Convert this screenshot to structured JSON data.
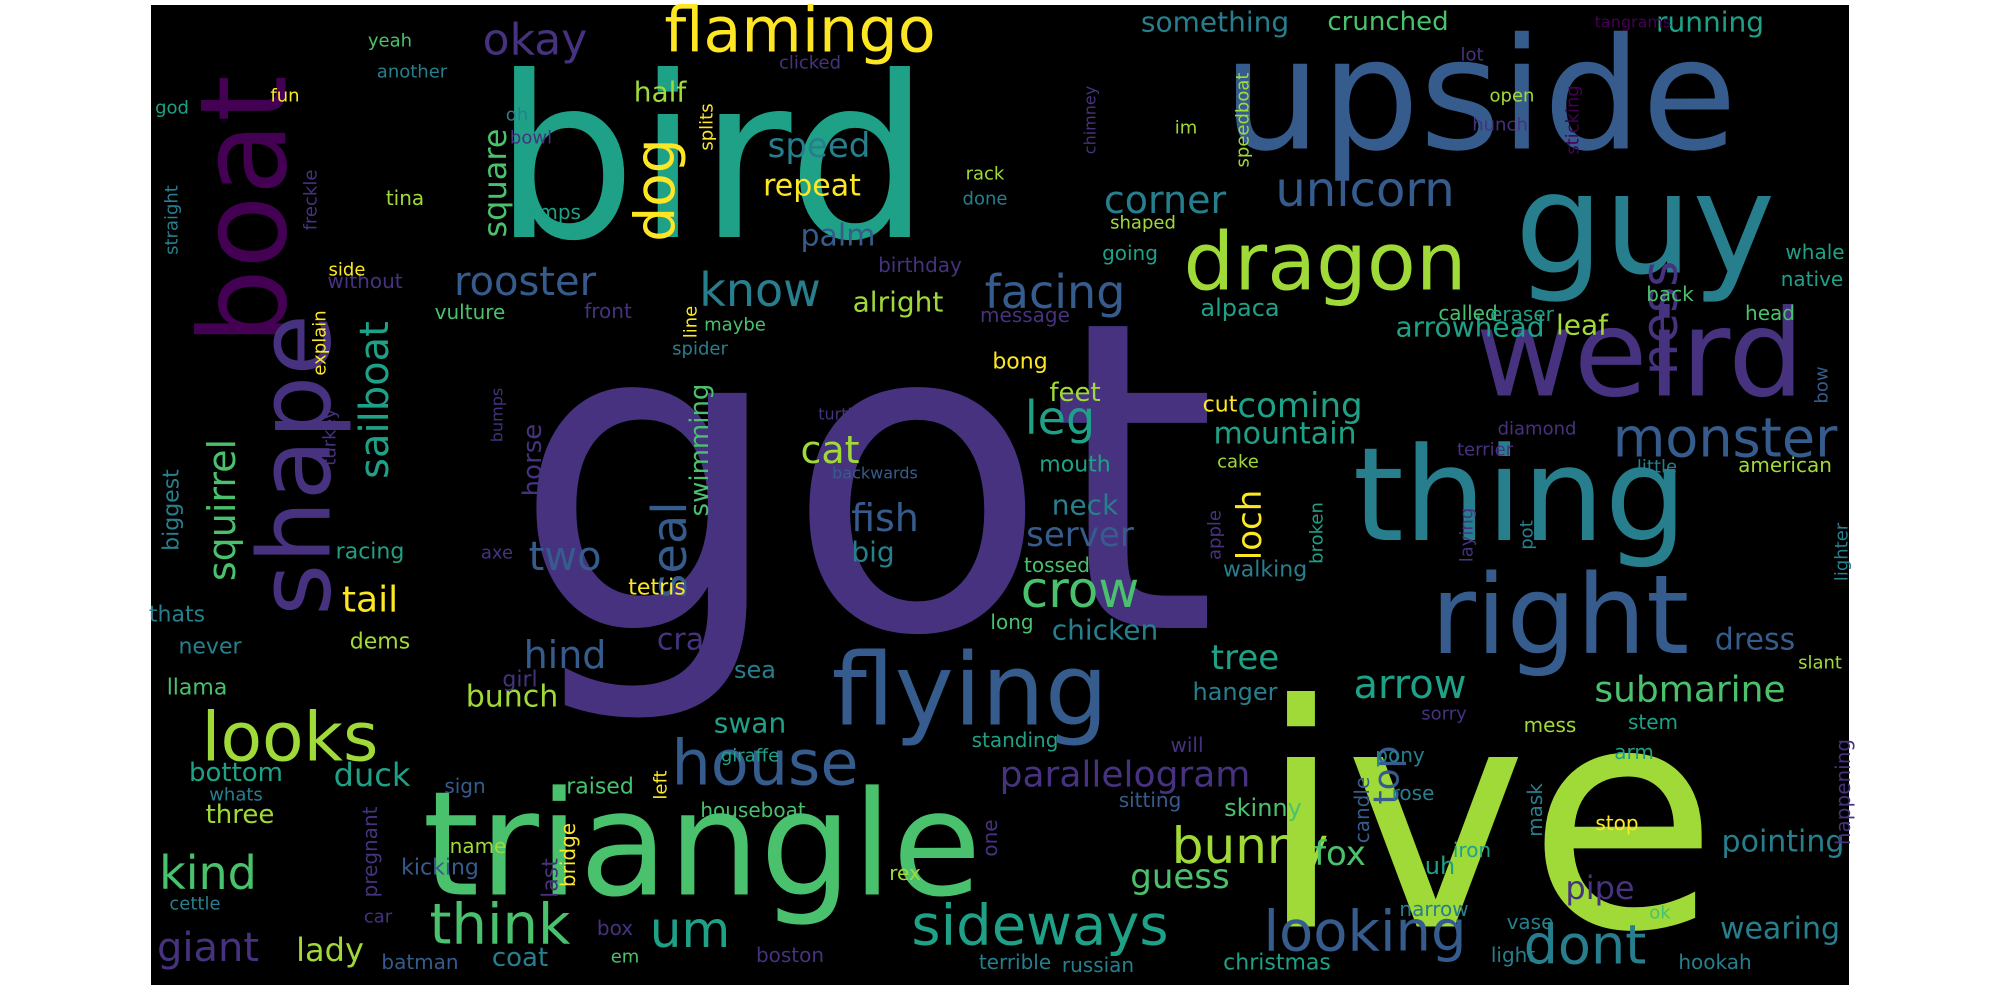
{
  "background_color": "#000000",
  "palette": [
    "#440154",
    "#46327e",
    "#365c8d",
    "#277f8e",
    "#1fa187",
    "#4ac16d",
    "#a0da39",
    "#fde725"
  ],
  "words": [
    {
      "text": "got",
      "color": "#46327e"
    },
    {
      "text": "ive",
      "color": "#a0da39"
    },
    {
      "text": "bird",
      "color": "#1fa187"
    },
    {
      "text": "upside",
      "color": "#365c8d"
    },
    {
      "text": "triangle",
      "color": "#4ac16d"
    },
    {
      "text": "thing",
      "color": "#277f8e"
    },
    {
      "text": "guy",
      "color": "#277f8e"
    },
    {
      "text": "weird",
      "color": "#46327e"
    },
    {
      "text": "right",
      "color": "#365c8d"
    },
    {
      "text": "flying",
      "color": "#365c8d"
    },
    {
      "text": "boat",
      "color": "#440154"
    },
    {
      "text": "shape",
      "color": "#46327e"
    },
    {
      "text": "dragon",
      "color": "#a0da39"
    },
    {
      "text": "flamingo",
      "color": "#fde725"
    },
    {
      "text": "looks",
      "color": "#a0da39"
    },
    {
      "text": "house",
      "color": "#365c8d"
    },
    {
      "text": "sideways",
      "color": "#1fa187"
    },
    {
      "text": "looking",
      "color": "#365c8d"
    },
    {
      "text": "think",
      "color": "#4ac16d"
    },
    {
      "text": "unicorn",
      "color": "#365c8d"
    },
    {
      "text": "monster",
      "color": "#365c8d"
    },
    {
      "text": "ness",
      "color": "#46327e"
    },
    {
      "text": "crow",
      "color": "#4ac16d"
    },
    {
      "text": "rooster",
      "color": "#365c8d"
    },
    {
      "text": "know",
      "color": "#277f8e"
    },
    {
      "text": "facing",
      "color": "#365c8d"
    },
    {
      "text": "dog",
      "color": "#fde725"
    },
    {
      "text": "um",
      "color": "#1fa187"
    },
    {
      "text": "dont",
      "color": "#277f8e"
    },
    {
      "text": "bunny",
      "color": "#a0da39"
    },
    {
      "text": "okay",
      "color": "#46327e"
    },
    {
      "text": "parallelogram",
      "color": "#46327e"
    },
    {
      "text": "arrow",
      "color": "#1fa187"
    },
    {
      "text": "submarine",
      "color": "#4ac16d"
    },
    {
      "text": "kind",
      "color": "#4ac16d"
    },
    {
      "text": "giant",
      "color": "#46327e"
    },
    {
      "text": "sailboat",
      "color": "#1fa187"
    },
    {
      "text": "squirrel",
      "color": "#4ac16d"
    },
    {
      "text": "seal",
      "color": "#365c8d"
    },
    {
      "text": "leg",
      "color": "#1fa187"
    },
    {
      "text": "corner",
      "color": "#277f8e"
    },
    {
      "text": "fish",
      "color": "#365c8d"
    },
    {
      "text": "cat",
      "color": "#a0da39"
    },
    {
      "text": "two",
      "color": "#365c8d"
    },
    {
      "text": "hind",
      "color": "#365c8d"
    },
    {
      "text": "tail",
      "color": "#fde725"
    },
    {
      "text": "loch",
      "color": "#fde725"
    },
    {
      "text": "tree",
      "color": "#1fa187"
    },
    {
      "text": "fox",
      "color": "#4ac16d"
    },
    {
      "text": "guess",
      "color": "#4ac16d"
    },
    {
      "text": "top",
      "color": "#365c8d"
    },
    {
      "text": "coming",
      "color": "#1fa187"
    },
    {
      "text": "mountain",
      "color": "#1fa187"
    },
    {
      "text": "server",
      "color": "#365c8d"
    },
    {
      "text": "lady",
      "color": "#a0da39"
    },
    {
      "text": "duck",
      "color": "#1fa187"
    },
    {
      "text": "pointing",
      "color": "#277f8e"
    },
    {
      "text": "wearing",
      "color": "#277f8e"
    },
    {
      "text": "pipe",
      "color": "#46327e"
    },
    {
      "text": "dress",
      "color": "#365c8d"
    },
    {
      "text": "half",
      "color": "#a0da39"
    },
    {
      "text": "speed",
      "color": "#277f8e"
    },
    {
      "text": "repeat",
      "color": "#fde725"
    },
    {
      "text": "palm",
      "color": "#365c8d"
    },
    {
      "text": "square",
      "color": "#4ac16d"
    },
    {
      "text": "alright",
      "color": "#a0da39"
    },
    {
      "text": "something",
      "color": "#277f8e"
    },
    {
      "text": "crunched",
      "color": "#4ac16d"
    },
    {
      "text": "running",
      "color": "#1fa187"
    },
    {
      "text": "arrowhead",
      "color": "#1fa187"
    },
    {
      "text": "leaf",
      "color": "#a0da39"
    },
    {
      "text": "alpaca",
      "color": "#1fa187"
    },
    {
      "text": "chicken",
      "color": "#277f8e"
    },
    {
      "text": "crab",
      "color": "#46327e"
    },
    {
      "text": "swan",
      "color": "#1fa187"
    },
    {
      "text": "bunch",
      "color": "#a0da39"
    },
    {
      "text": "swimming",
      "color": "#4ac16d"
    },
    {
      "text": "big",
      "color": "#277f8e"
    },
    {
      "text": "neck",
      "color": "#277f8e"
    },
    {
      "text": "feet",
      "color": "#a0da39"
    },
    {
      "text": "horse",
      "color": "#46327e"
    },
    {
      "text": "hanger",
      "color": "#277f8e"
    },
    {
      "text": "bottom",
      "color": "#1fa187"
    },
    {
      "text": "three",
      "color": "#a0da39"
    },
    {
      "text": "coat",
      "color": "#277f8e"
    },
    {
      "text": "uh",
      "color": "#1fa187"
    },
    {
      "text": "sea",
      "color": "#277f8e"
    },
    {
      "text": "biggest",
      "color": "#277f8e"
    },
    {
      "text": "last",
      "color": "#46327e"
    },
    {
      "text": "cut",
      "color": "#fde725"
    },
    {
      "text": "bong",
      "color": "#fde725"
    },
    {
      "text": "mouth",
      "color": "#1fa187"
    },
    {
      "text": "walking",
      "color": "#277f8e"
    },
    {
      "text": "explain",
      "color": "#fde725"
    },
    {
      "text": "turkey",
      "color": "#46327e"
    },
    {
      "text": "tetris",
      "color": "#fde725"
    },
    {
      "text": "racing",
      "color": "#1fa187"
    },
    {
      "text": "llama",
      "color": "#4ac16d"
    },
    {
      "text": "dems",
      "color": "#a0da39"
    },
    {
      "text": "thats",
      "color": "#277f8e"
    },
    {
      "text": "never",
      "color": "#277f8e"
    },
    {
      "text": "girl",
      "color": "#46327e"
    },
    {
      "text": "giraffe",
      "color": "#1fa187"
    },
    {
      "text": "skinny",
      "color": "#4ac16d"
    },
    {
      "text": "standing",
      "color": "#1fa187"
    },
    {
      "text": "christmas",
      "color": "#1fa187"
    },
    {
      "text": "hookah",
      "color": "#277f8e"
    },
    {
      "text": "light",
      "color": "#277f8e"
    },
    {
      "text": "terrible",
      "color": "#277f8e"
    },
    {
      "text": "russian",
      "color": "#277f8e"
    },
    {
      "text": "boston",
      "color": "#46327e"
    },
    {
      "text": "batman",
      "color": "#365c8d"
    },
    {
      "text": "em",
      "color": "#4ac16d"
    },
    {
      "text": "box",
      "color": "#46327e"
    },
    {
      "text": "car",
      "color": "#46327e"
    },
    {
      "text": "cettle",
      "color": "#277f8e"
    },
    {
      "text": "rex",
      "color": "#a0da39"
    },
    {
      "text": "kicking",
      "color": "#365c8d"
    },
    {
      "text": "name",
      "color": "#a0da39"
    },
    {
      "text": "sign",
      "color": "#365c8d"
    },
    {
      "text": "raised",
      "color": "#4ac16d"
    },
    {
      "text": "whats",
      "color": "#277f8e"
    },
    {
      "text": "houseboat",
      "color": "#4ac16d"
    },
    {
      "text": "sitting",
      "color": "#365c8d"
    },
    {
      "text": "vase",
      "color": "#277f8e"
    },
    {
      "text": "narrow",
      "color": "#277f8e"
    },
    {
      "text": "iron",
      "color": "#1fa187"
    },
    {
      "text": "ok",
      "color": "#4ac16d"
    },
    {
      "text": "mess",
      "color": "#a0da39"
    },
    {
      "text": "stem",
      "color": "#1fa187"
    },
    {
      "text": "pony",
      "color": "#277f8e"
    },
    {
      "text": "sorry",
      "color": "#46327e"
    },
    {
      "text": "stop",
      "color": "#fde725"
    },
    {
      "text": "rose",
      "color": "#277f8e"
    },
    {
      "text": "arm",
      "color": "#1fa187"
    },
    {
      "text": "candle",
      "color": "#365c8d"
    },
    {
      "text": "mask",
      "color": "#277f8e"
    },
    {
      "text": "happening",
      "color": "#46327e"
    },
    {
      "text": "will",
      "color": "#46327e"
    },
    {
      "text": "one",
      "color": "#46327e"
    },
    {
      "text": "pregnant",
      "color": "#46327e"
    },
    {
      "text": "bridge",
      "color": "#fde725"
    },
    {
      "text": "left",
      "color": "#fde725"
    },
    {
      "text": "tossed",
      "color": "#4ac16d"
    },
    {
      "text": "long",
      "color": "#4ac16d"
    },
    {
      "text": "axe",
      "color": "#46327e"
    },
    {
      "text": "apple",
      "color": "#46327e"
    },
    {
      "text": "broken",
      "color": "#1fa187"
    },
    {
      "text": "laying",
      "color": "#46327e"
    },
    {
      "text": "pot",
      "color": "#277f8e"
    },
    {
      "text": "lighter",
      "color": "#277f8e"
    },
    {
      "text": "slant",
      "color": "#a0da39"
    },
    {
      "text": "cake",
      "color": "#a0da39"
    },
    {
      "text": "terrier",
      "color": "#46327e"
    },
    {
      "text": "diamond",
      "color": "#46327e"
    },
    {
      "text": "little",
      "color": "#277f8e"
    },
    {
      "text": "american",
      "color": "#a0da39"
    },
    {
      "text": "bow",
      "color": "#365c8d"
    },
    {
      "text": "back",
      "color": "#4ac16d"
    },
    {
      "text": "head",
      "color": "#4ac16d"
    },
    {
      "text": "native",
      "color": "#1fa187"
    },
    {
      "text": "whale",
      "color": "#1fa187"
    },
    {
      "text": "called",
      "color": "#4ac16d"
    },
    {
      "text": "eraser",
      "color": "#1fa187"
    },
    {
      "text": "message",
      "color": "#46327e"
    },
    {
      "text": "going",
      "color": "#1fa187"
    },
    {
      "text": "shaped",
      "color": "#a0da39"
    },
    {
      "text": "birthday",
      "color": "#46327e"
    },
    {
      "text": "front",
      "color": "#46327e"
    },
    {
      "text": "vulture",
      "color": "#4ac16d"
    },
    {
      "text": "without",
      "color": "#46327e"
    },
    {
      "text": "side",
      "color": "#fde725"
    },
    {
      "text": "humps",
      "color": "#1fa187"
    },
    {
      "text": "tina",
      "color": "#a0da39"
    },
    {
      "text": "bowl",
      "color": "#46327e"
    },
    {
      "text": "freckle",
      "color": "#46327e"
    },
    {
      "text": "straight",
      "color": "#277f8e"
    },
    {
      "text": "god",
      "color": "#1fa187"
    },
    {
      "text": "fun",
      "color": "#fde725"
    },
    {
      "text": "oh",
      "color": "#277f8e"
    },
    {
      "text": "yeah",
      "color": "#4ac16d"
    },
    {
      "text": "another",
      "color": "#277f8e"
    },
    {
      "text": "clicked",
      "color": "#46327e"
    },
    {
      "text": "splits",
      "color": "#fde725"
    },
    {
      "text": "line",
      "color": "#fde725"
    },
    {
      "text": "maybe",
      "color": "#4ac16d"
    },
    {
      "text": "spider",
      "color": "#277f8e"
    },
    {
      "text": "bumps",
      "color": "#46327e"
    },
    {
      "text": "turtle",
      "color": "#46327e"
    },
    {
      "text": "backwards",
      "color": "#365c8d"
    },
    {
      "text": "rack",
      "color": "#a0da39"
    },
    {
      "text": "done",
      "color": "#277f8e"
    },
    {
      "text": "chimney",
      "color": "#46327e"
    },
    {
      "text": "speedboat",
      "color": "#a0da39"
    },
    {
      "text": "im",
      "color": "#a0da39"
    },
    {
      "text": "lot",
      "color": "#46327e"
    },
    {
      "text": "open",
      "color": "#a0da39"
    },
    {
      "text": "hunch",
      "color": "#46327e"
    },
    {
      "text": "sticking",
      "color": "#440154"
    },
    {
      "text": "tangrams",
      "color": "#440154"
    }
  ]
}
